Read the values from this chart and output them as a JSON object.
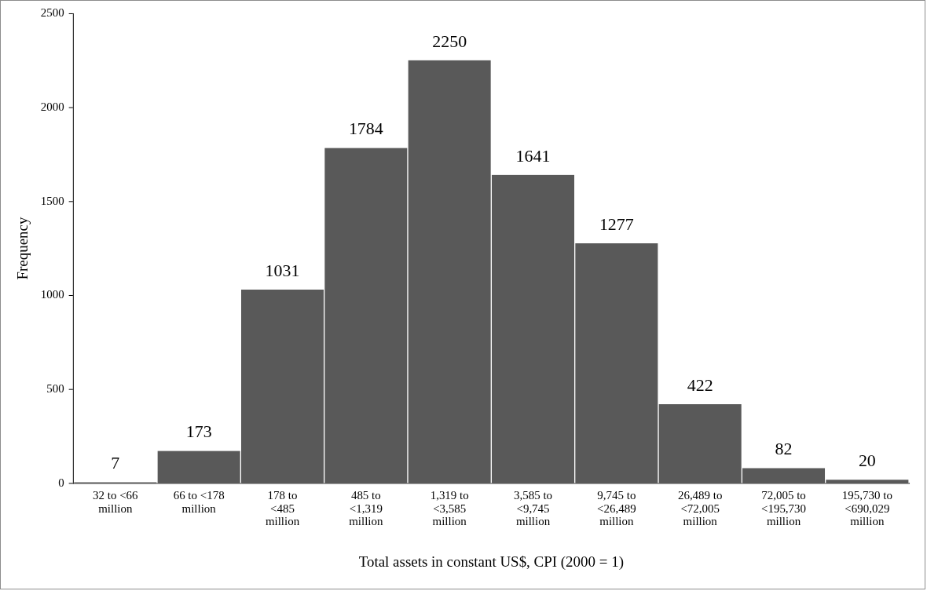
{
  "chart_data": {
    "type": "bar",
    "xlabel": "Total assets in constant US$, CPI (2000 = 1)",
    "ylabel": "Frequency",
    "categories": [
      "32 to <66 million",
      "66 to <178 million",
      "178 to <485 million",
      "485 to <1,319 million",
      "1,319 to <3,585 million",
      "3,585 to <9,745 million",
      "9,745 to <26,489 million",
      "26,489 to <72,005 million",
      "72,005 to <195,730 million",
      "195,730 to <690,029 million"
    ],
    "values": [
      7,
      173,
      1031,
      1784,
      2250,
      1641,
      1277,
      422,
      82,
      20
    ],
    "color": "#595959",
    "ylim": [
      0,
      2500
    ],
    "yticks": [
      0,
      500,
      1000,
      1500,
      2000,
      2500
    ],
    "data_labels": true,
    "grid": false,
    "legend": false
  }
}
